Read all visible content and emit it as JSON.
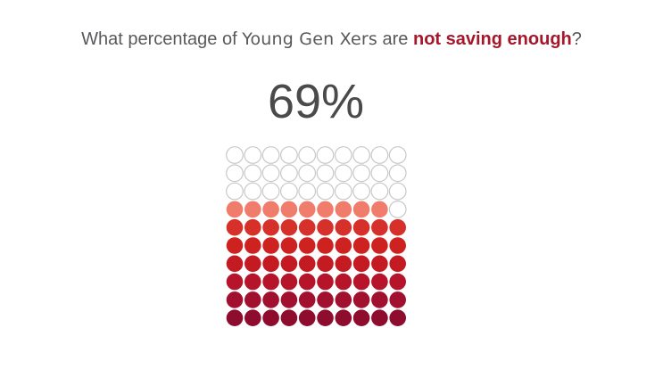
{
  "question": {
    "part1": "What percentage of ",
    "group": "Young Gen Xers",
    "part2": " are ",
    "emphasis": "not saving enough",
    "part3": "?"
  },
  "headline_value": "69%",
  "chart_data": {
    "type": "waffle",
    "total_units": 100,
    "filled_units": 69,
    "percent": 69,
    "rows": 10,
    "columns": 10,
    "fill_order": "bottom-up, left-to-right",
    "colors": {
      "empty_stroke": "#c8c8c8",
      "row_fills_bottom_to_top": [
        "#8e0c2e",
        "#a1102f",
        "#b5142a",
        "#c41a22",
        "#ce2221",
        "#d6302a",
        "#f07c6c"
      ]
    }
  }
}
